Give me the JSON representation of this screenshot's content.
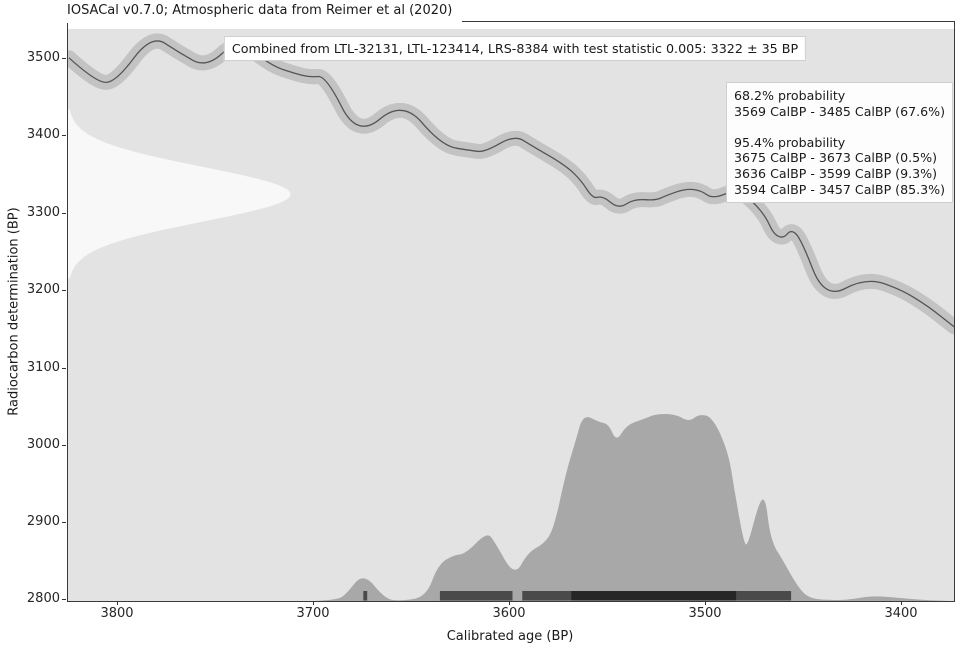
{
  "title": "IOSACal v0.7.0; Atmospheric data from Reimer et al (2020)",
  "annotation_box": "Combined from LTL-32131, LTL-123414, LRS-8384 with test statistic 0.005: 3322 ± 35 BP",
  "probability_box": {
    "line1": "68.2% probability",
    "line2": "3569 CalBP - 3485 CalBP (67.6%)",
    "line3": "",
    "line4": "95.4% probability",
    "line5": "3675 CalBP - 3673 CalBP (0.5%)",
    "line6": "3636 CalBP - 3599 CalBP (9.3%)",
    "line7": "3594 CalBP - 3457 CalBP (85.3%)"
  },
  "chart_data": {
    "type": "area",
    "title": "IOSACal v0.7.0; Atmospheric data from Reimer et al (2020)",
    "xlabel": "Calibrated age (BP)",
    "ylabel": "Radiocarbon determination (BP)",
    "x_ticks": [
      3800,
      3700,
      3600,
      3500,
      3400
    ],
    "y_ticks": [
      3500,
      3400,
      3300,
      3200,
      3100,
      3000,
      2900,
      2800
    ],
    "x_range_left_to_right": [
      3825.5,
      3374
    ],
    "y_range": [
      2800,
      3543
    ],
    "grid": false,
    "radiocarbon_date": {
      "mean": 3322,
      "sigma": 35,
      "label": "3322 ± 35 BP"
    },
    "calibration_curve": [
      [
        3825,
        3497
      ],
      [
        3811,
        3465
      ],
      [
        3801,
        3466
      ],
      [
        3783,
        3527
      ],
      [
        3769,
        3504
      ],
      [
        3755,
        3484
      ],
      [
        3739,
        3521
      ],
      [
        3722,
        3487
      ],
      [
        3710,
        3477
      ],
      [
        3702,
        3472
      ],
      [
        3694,
        3474
      ],
      [
        3678,
        3394
      ],
      [
        3655,
        3443
      ],
      [
        3635,
        3384
      ],
      [
        3620,
        3378
      ],
      [
        3613,
        3376
      ],
      [
        3598,
        3398
      ],
      [
        3589,
        3384
      ],
      [
        3572,
        3359
      ],
      [
        3564,
        3340
      ],
      [
        3558,
        3316
      ],
      [
        3553,
        3320
      ],
      [
        3545,
        3303
      ],
      [
        3537,
        3316
      ],
      [
        3526,
        3314
      ],
      [
        3521,
        3320
      ],
      [
        3511,
        3329
      ],
      [
        3503,
        3327
      ],
      [
        3497,
        3316
      ],
      [
        3486,
        3327
      ],
      [
        3479,
        3319
      ],
      [
        3470,
        3294
      ],
      [
        3466,
        3271
      ],
      [
        3461,
        3265
      ],
      [
        3457,
        3277
      ],
      [
        3452,
        3265
      ],
      [
        3440,
        3187
      ],
      [
        3419,
        3215
      ],
      [
        3401,
        3200
      ],
      [
        3387,
        3178
      ],
      [
        3374,
        3152
      ]
    ],
    "calibrated_pdf": [
      [
        3700,
        0
      ],
      [
        3689,
        0.005
      ],
      [
        3684,
        0.032
      ],
      [
        3675,
        0.155
      ],
      [
        3664,
        0.011
      ],
      [
        3656,
        0
      ],
      [
        3643,
        0.021
      ],
      [
        3637,
        0.193
      ],
      [
        3629,
        0.246
      ],
      [
        3623,
        0.251
      ],
      [
        3612,
        0.369
      ],
      [
        3608,
        0.316
      ],
      [
        3598,
        0.128
      ],
      [
        3591,
        0.262
      ],
      [
        3583,
        0.305
      ],
      [
        3578,
        0.385
      ],
      [
        3572,
        0.674
      ],
      [
        3567,
        0.85
      ],
      [
        3563,
        1.0
      ],
      [
        3555,
        0.957
      ],
      [
        3550,
        0.947
      ],
      [
        3546,
        0.85
      ],
      [
        3541,
        0.941
      ],
      [
        3532,
        0.973
      ],
      [
        3526,
        1.0
      ],
      [
        3516,
        1.0
      ],
      [
        3509,
        0.957
      ],
      [
        3504,
        1.0
      ],
      [
        3497,
        0.984
      ],
      [
        3489,
        0.797
      ],
      [
        3486,
        0.599
      ],
      [
        3481,
        0.305
      ],
      [
        3479,
        0.299
      ],
      [
        3473,
        0.54
      ],
      [
        3470,
        0.545
      ],
      [
        3468,
        0.369
      ],
      [
        3465,
        0.278
      ],
      [
        3463,
        0.251
      ],
      [
        3453,
        0.064
      ],
      [
        3447,
        0.011
      ],
      [
        3436,
        0.005
      ],
      [
        3429,
        0.005
      ],
      [
        3416,
        0.027
      ],
      [
        3406,
        0.021
      ],
      [
        3390,
        0.005
      ],
      [
        3376,
        0
      ]
    ],
    "intervals_95_4": [
      [
        3675,
        3673
      ],
      [
        3636,
        3599
      ],
      [
        3594,
        3457
      ]
    ],
    "intervals_68_2": [
      [
        3569,
        3485
      ]
    ],
    "colors": {
      "plot_background": "#e3e3e3",
      "curve_band": "#c3c3c3",
      "curve_line": "#555555",
      "calibrated_pdf_fill": "#a8a8a8",
      "date_pdf_fill": "#f8f8f8",
      "interval_95_bar": "#4a4a4a",
      "interval_68_bar": "#262626",
      "spine": "#3a3a3a"
    }
  }
}
